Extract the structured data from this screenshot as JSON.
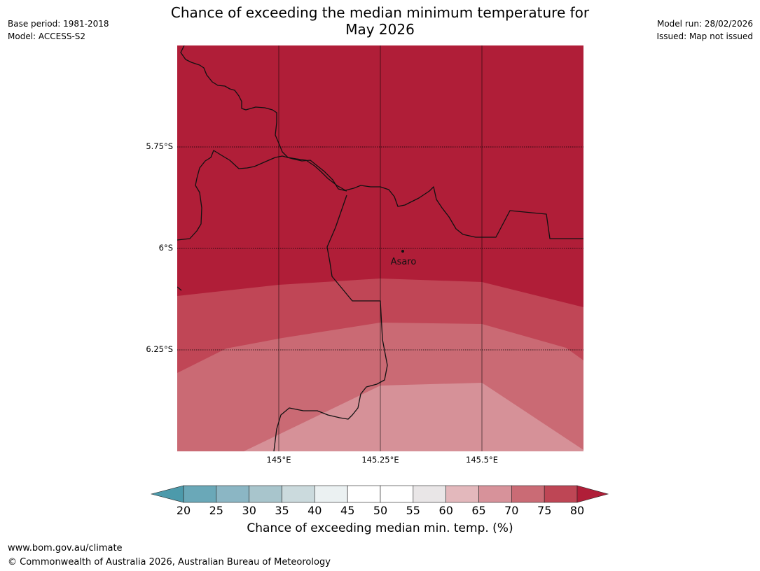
{
  "header": {
    "title_line1": "Chance of exceeding the median minimum temperature for",
    "title_line2": "May 2026",
    "base_period": "Base period: 1981-2018",
    "model": "Model: ACCESS-S2",
    "model_run": "Model run: 28/02/2026",
    "issued": "Issued: Map not issued"
  },
  "map": {
    "lat_labels": [
      "5.75°S",
      "6°S",
      "6.25°S"
    ],
    "lon_labels": [
      "145°E",
      "145.25°E",
      "145.5°E"
    ],
    "place_name": "Asaro",
    "colors": {
      "above_80": "#b01e38",
      "p75_80": "#c04656",
      "p70_75": "#ca6a74",
      "p65_70": "#d69198"
    }
  },
  "colorbar": {
    "ticks": [
      "20",
      "25",
      "30",
      "35",
      "40",
      "45",
      "50",
      "55",
      "60",
      "65",
      "70",
      "75",
      "80"
    ],
    "colors": [
      "#6aa8b8",
      "#8bb6c4",
      "#a8c5cc",
      "#cbdadd",
      "#ebf1f2",
      "#ffffff",
      "#ffffff",
      "#e9e6e7",
      "#e3b8bc",
      "#d7929a",
      "#ca6b75",
      "#be4655"
    ],
    "low_color": "#4c9aab",
    "high_color": "#b01e38",
    "label": "Chance of exceeding median min. temp. (%)"
  },
  "footer": {
    "url": "www.bom.gov.au/climate",
    "copyright": "© Commonwealth of Australia 2026, Australian Bureau of Meteorology"
  }
}
